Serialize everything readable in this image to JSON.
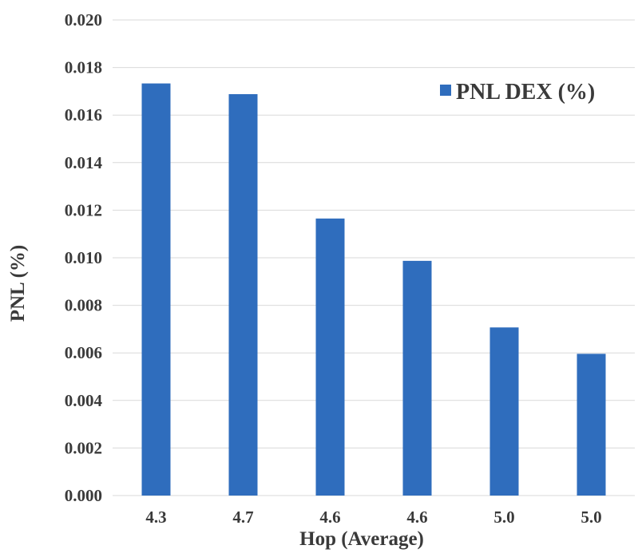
{
  "chart_data": {
    "type": "bar",
    "title": "",
    "xlabel": "Hop (Average)",
    "ylabel": "PNL (%)",
    "categories": [
      "4.3",
      "4.7",
      "4.6",
      "4.6",
      "5.0",
      "5.0"
    ],
    "series": [
      {
        "name": "PNL DEX (%)",
        "values": [
          0.01733,
          0.01688,
          0.01165,
          0.00987,
          0.00707,
          0.00596
        ],
        "color": "#2f6dbd"
      }
    ],
    "ylim": [
      0,
      0.02
    ],
    "yticks": [
      "0.000",
      "0.002",
      "0.004",
      "0.006",
      "0.008",
      "0.010",
      "0.012",
      "0.014",
      "0.016",
      "0.018",
      "0.020"
    ],
    "grid": true,
    "legend": {
      "position": "top-right"
    }
  }
}
